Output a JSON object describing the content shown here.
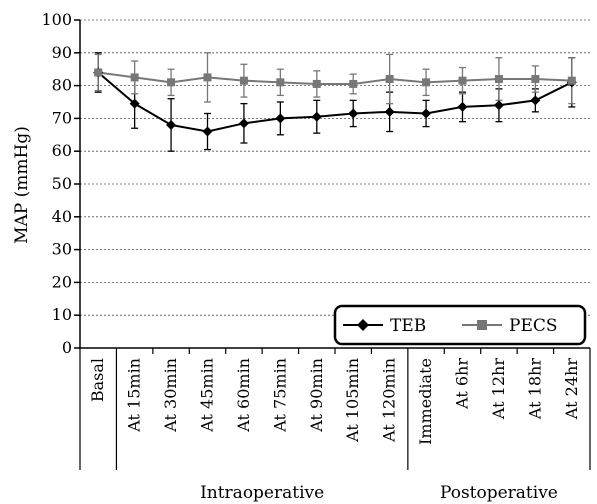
{
  "chart_data": {
    "type": "line",
    "ylabel": "MAP (mmHg)",
    "ylim": [
      0,
      100
    ],
    "yticks": [
      0,
      10,
      20,
      30,
      40,
      50,
      60,
      70,
      80,
      90,
      100
    ],
    "grid": "horizontal-dashed",
    "categories": [
      "Basal",
      "At 15min",
      "At 30min",
      "At 45min",
      "At 60min",
      "At 75min",
      "At 90min",
      "At 105min",
      "At 120min",
      "Immediate",
      "At 6hr",
      "At 12hr",
      "At 18hr",
      "At 24hr"
    ],
    "groups": [
      {
        "label": "Intraoperative",
        "start": 1,
        "end": 8
      },
      {
        "label": "Postoperative",
        "start": 9,
        "end": 13
      }
    ],
    "legend_position": "bottom-right",
    "series": [
      {
        "name": "TEB",
        "color": "#000000",
        "marker": "diamond",
        "values": [
          84,
          74.5,
          68,
          66,
          68.5,
          70,
          70.5,
          71.5,
          72,
          71.5,
          73.5,
          74,
          75.5,
          81
        ],
        "error": [
          6,
          7.5,
          8,
          5.5,
          6,
          5,
          5,
          4,
          6,
          4,
          4.5,
          5,
          3.5,
          7.5
        ]
      },
      {
        "name": "PECS",
        "color": "#777777",
        "marker": "square",
        "values": [
          84,
          82.5,
          81,
          82.5,
          81.5,
          81,
          80.5,
          80.5,
          82,
          81,
          81.5,
          82,
          82,
          81.5
        ],
        "error": [
          5.5,
          5,
          4,
          7.5,
          5,
          4,
          4,
          3,
          7.5,
          4,
          4,
          6.5,
          4,
          7
        ]
      }
    ]
  }
}
